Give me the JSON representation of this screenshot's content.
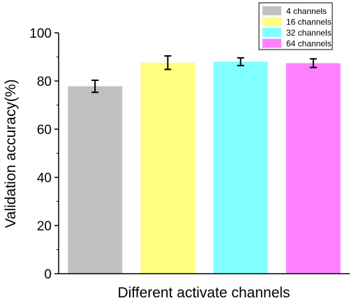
{
  "chart_data": {
    "type": "bar",
    "xlabel": "Different activate channels",
    "ylabel": "Validation accuracy(%)",
    "ylim": [
      0,
      100
    ],
    "yticks": [
      "0",
      "20",
      "40",
      "60",
      "80",
      "100"
    ],
    "legend_position": "top-right",
    "grid": false,
    "series": [
      {
        "name": "4 channels",
        "value": 77.8,
        "error": 2.5,
        "color": "#c0c0c0"
      },
      {
        "name": "16 channels",
        "value": 87.6,
        "error": 2.8,
        "color": "#ffff80"
      },
      {
        "name": "32 channels",
        "value": 88.0,
        "error": 1.6,
        "color": "#80ffff"
      },
      {
        "name": "64 channels",
        "value": 87.4,
        "error": 1.8,
        "color": "#ff80ff"
      }
    ]
  }
}
